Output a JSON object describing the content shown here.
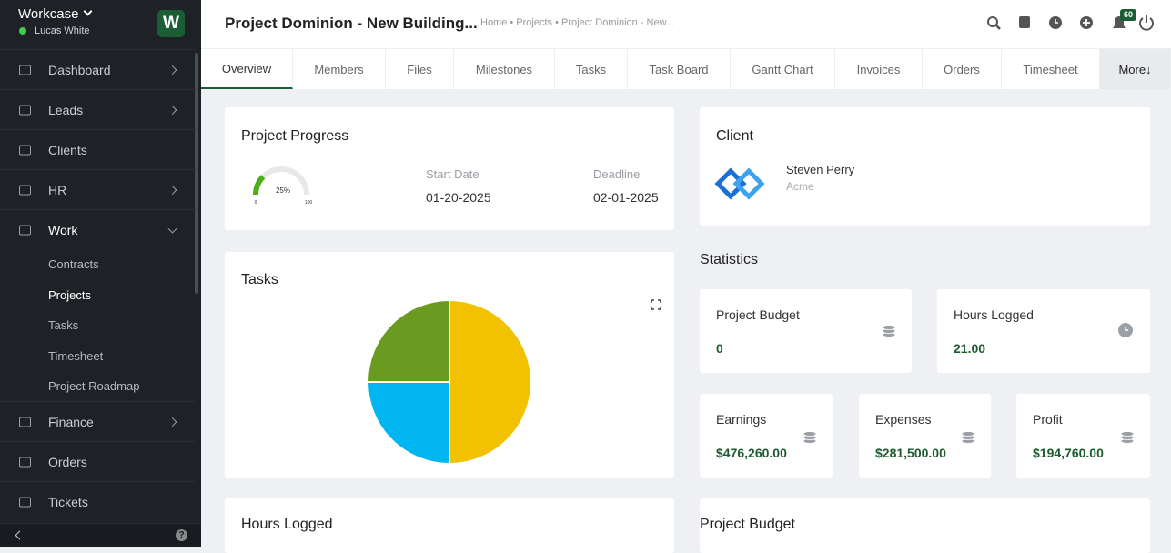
{
  "sidebar": {
    "brand": "Workcase",
    "user": "Lucas White",
    "logo": "W",
    "menu": [
      {
        "label": "Dashboard",
        "chevron": "right"
      },
      {
        "label": "Leads",
        "chevron": "right"
      },
      {
        "label": "Clients"
      },
      {
        "label": "HR",
        "chevron": "right"
      },
      {
        "label": "Work",
        "chevron": "down"
      },
      {
        "label": "Finance",
        "chevron": "right"
      },
      {
        "label": "Orders"
      },
      {
        "label": "Tickets"
      }
    ],
    "submenu": [
      "Contracts",
      "Projects",
      "Tasks",
      "Timesheet",
      "Project Roadmap"
    ],
    "active_submenu": 1
  },
  "header": {
    "title": "Project Dominion - New Building...",
    "breadcrumb": "Home • Projects • Project Dominion - New...",
    "notifications": "60"
  },
  "tabs": [
    "Overview",
    "Members",
    "Files",
    "Milestones",
    "Tasks",
    "Task Board",
    "Gantt Chart",
    "Invoices",
    "Orders",
    "Timesheet",
    "More↓"
  ],
  "progress": {
    "title": "Project Progress",
    "gauge": {
      "value": 25,
      "label": "25%",
      "min": 0,
      "max": 100,
      "color": "#4caf1a"
    },
    "start_label": "Start Date",
    "start": "01-20-2025",
    "deadline_label": "Deadline",
    "deadline": "02-01-2025"
  },
  "client": {
    "title": "Client",
    "name": "Steven Perry",
    "company": "Acme"
  },
  "tasks": {
    "title": "Tasks",
    "chart": {
      "type": "pie",
      "values": [
        50,
        25,
        25
      ],
      "colors": [
        "#f2c200",
        "#00b5f0",
        "#6a9a1f"
      ]
    }
  },
  "statistics": {
    "title": "Statistics",
    "cards": [
      {
        "label": "Project Budget",
        "value": "0"
      },
      {
        "label": "Hours Logged",
        "value": "21.00"
      },
      {
        "label": "Earnings",
        "value": "$476,260.00"
      },
      {
        "label": "Expenses",
        "value": "$281,500.00"
      },
      {
        "label": "Profit",
        "value": "$194,760.00"
      }
    ]
  },
  "bottom": [
    "Hours Logged",
    "Project Budget"
  ]
}
